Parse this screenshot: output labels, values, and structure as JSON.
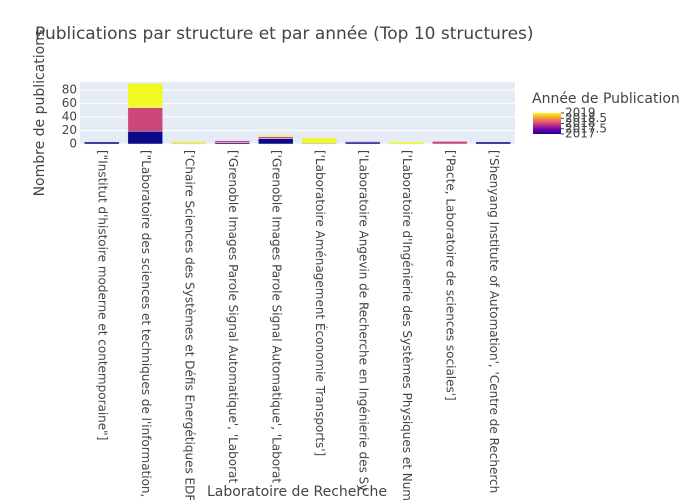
{
  "chart_data": {
    "type": "bar",
    "stacked": true,
    "title": "Publications par structure et par année (Top 10 structures)",
    "x_label": "Laboratoire de Recherche",
    "y_label": "Nombre de publications",
    "categories": [
      "[\"Institut d'histoire moderne et contemporaine\"]",
      "[\"Laboratoire des sciences et techniques de l'information,",
      "['Chaire Sciences des Systèmes et Défis Energétiques EDF",
      "['Grenoble Images Parole Signal Automatique', 'Laborat",
      "['Grenoble Images Parole Signal Automatique', 'Laborat",
      "['Laboratoire Aménagement Économie Transports']",
      "['Laboratoire Angevin de Recherche en Ingénierie des Sy",
      "['Laboratoire d'Ingénierie des Systèmes Physiques et Num",
      "['Pacte, Laboratoire de sciences sociales']",
      "['Shenyang Institute of Automation', 'Centre de Recherch"
    ],
    "series": [
      {
        "name": "2017",
        "color": "#0d0887",
        "values": [
          3,
          19,
          0,
          2,
          8,
          1,
          3,
          0,
          0,
          3
        ]
      },
      {
        "name": "2018",
        "color": "#cc4778",
        "values": [
          0,
          35,
          1,
          3,
          3,
          0,
          1,
          0,
          4,
          0
        ]
      },
      {
        "name": "2019",
        "color": "#f0f921",
        "values": [
          0,
          36,
          3,
          0,
          2,
          8,
          0,
          3,
          1,
          0
        ]
      }
    ],
    "ylim": [
      0,
      92
    ],
    "yticks": [
      0,
      20,
      40,
      60,
      80
    ],
    "grid": true,
    "colorbar": {
      "title": "Année de Publication",
      "range": [
        2017,
        2019
      ],
      "ticks": [
        2017,
        2017.5,
        2018,
        2018.5,
        2019
      ],
      "colorscale": [
        "#0d0887",
        "#46039f",
        "#7201a8",
        "#9c179e",
        "#bd3786",
        "#d8576b",
        "#ed7953",
        "#fb9f3a",
        "#fdca26",
        "#f0f921"
      ]
    }
  }
}
